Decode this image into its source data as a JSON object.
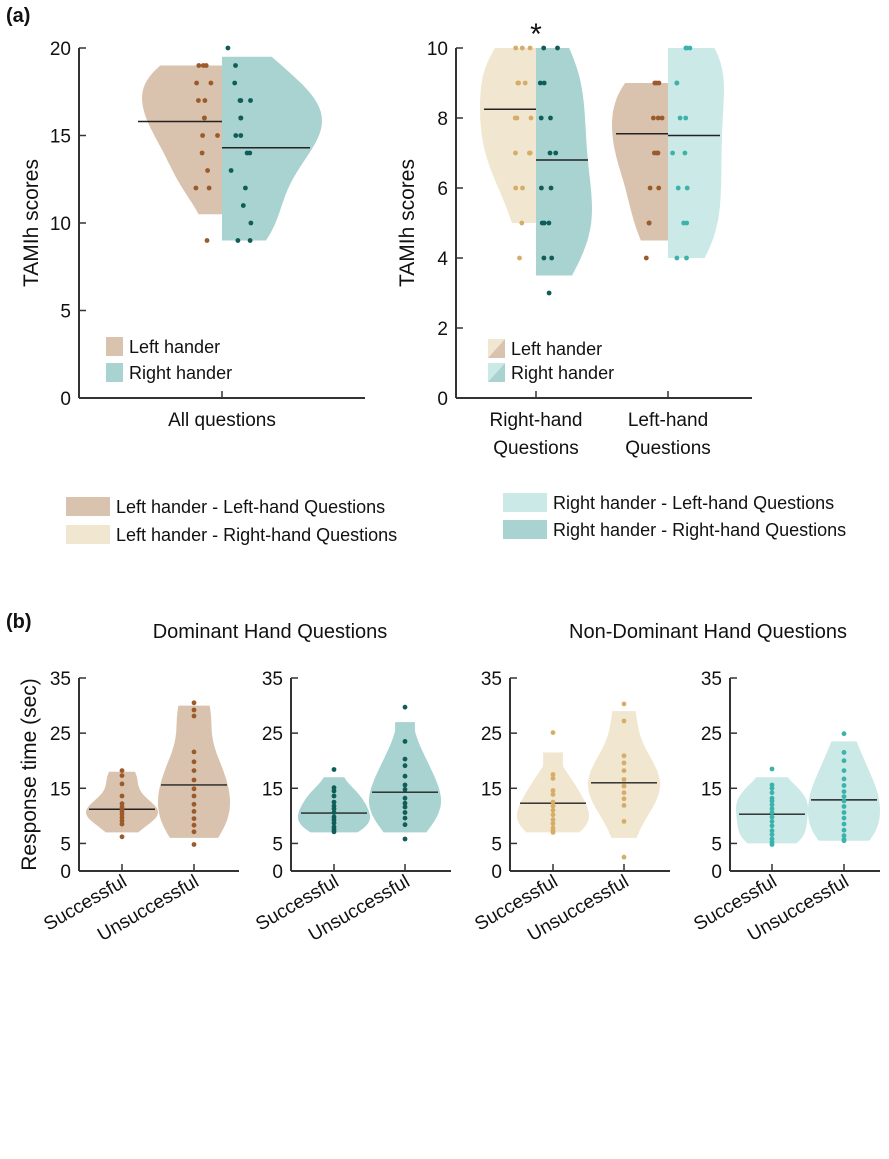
{
  "panel_a_label": "(a)",
  "panel_b_label": "(b)",
  "colors": {
    "left_left_q": "#d9c3ae",
    "left_right_q": "#f1e6cf",
    "right_left_q": "#cbe9e6",
    "right_right_q": "#a8d3d0",
    "left_all": "#d9c3ae",
    "right_all": "#a8d3d0",
    "dot_left": "#9a5a2a",
    "dot_right": "#0f5c58",
    "dot_left_light": "#d6ad66",
    "dot_right_light": "#3bb3ac",
    "median": "#222222"
  },
  "bottom_legend": {
    "left_col": [
      "Left hander - Left-hand Questions",
      "Left hander - Right-hand Questions"
    ],
    "right_col": [
      "Right hander - Left-hand Questions",
      "Right hander - Right-hand Questions"
    ]
  },
  "chart_data": [
    {
      "id": "a1",
      "type": "violin",
      "ylabel": "TAMIh scores",
      "ylim": [
        0,
        20
      ],
      "yticks": [
        0,
        5,
        10,
        15,
        20
      ],
      "categories": [
        "All questions"
      ],
      "legend": [
        "Left hander",
        "Right hander"
      ],
      "series": [
        {
          "name": "Left hander",
          "median": 15.8,
          "range": [
            10.5,
            19
          ],
          "points": [
            19,
            19,
            19,
            18,
            18,
            17,
            17,
            16,
            16,
            15,
            15,
            14,
            13,
            12,
            12,
            9
          ]
        },
        {
          "name": "Right hander",
          "median": 14.3,
          "range": [
            9,
            19.5
          ],
          "points": [
            20,
            19,
            18,
            17,
            17,
            17,
            16,
            16,
            15,
            15,
            14,
            14,
            13,
            12,
            11,
            10,
            9,
            9
          ]
        }
      ]
    },
    {
      "id": "a2",
      "type": "violin",
      "ylabel": "TAMIh scores",
      "ylim": [
        0,
        10
      ],
      "yticks": [
        0,
        2,
        4,
        6,
        8,
        10
      ],
      "categories": [
        "Right-hand Questions",
        "Left-hand Questions"
      ],
      "legend": [
        "Left hander",
        "Right hander"
      ],
      "annotation": "*",
      "series": [
        {
          "name": "Left hander - Right-hand Questions",
          "category": 0,
          "side": "left",
          "median": 8.25,
          "range": [
            5,
            10
          ],
          "points": [
            10,
            10,
            10,
            9,
            9,
            9,
            8,
            8,
            8,
            7,
            7,
            7,
            6,
            6,
            5,
            4
          ]
        },
        {
          "name": "Right hander - Right-hand Questions",
          "category": 0,
          "side": "right",
          "median": 6.8,
          "range": [
            3.5,
            10
          ],
          "points": [
            10,
            10,
            9,
            9,
            8,
            8,
            7,
            7,
            6,
            6,
            5,
            5,
            5,
            4,
            4,
            3
          ]
        },
        {
          "name": "Left hander - Left-hand Questions",
          "category": 1,
          "side": "left",
          "median": 7.55,
          "range": [
            4.5,
            9
          ],
          "points": [
            9,
            9,
            9,
            8,
            8,
            8,
            7,
            7,
            7,
            6,
            6,
            5,
            5,
            4
          ]
        },
        {
          "name": "Right hander - Left-hand Questions",
          "category": 1,
          "side": "right",
          "median": 7.5,
          "range": [
            4,
            10
          ],
          "points": [
            10,
            10,
            10,
            9,
            9,
            8,
            8,
            7,
            7,
            6,
            6,
            5,
            5,
            4,
            4
          ]
        }
      ]
    },
    {
      "id": "b1",
      "type": "violin",
      "group_title": "Dominant Hand Questions",
      "ylabel": "Response time (sec)",
      "ylim": [
        0,
        35
      ],
      "yticks": [
        0,
        5,
        15,
        25,
        35
      ],
      "categories": [
        "Successful",
        "Unsuccessful"
      ],
      "series": [
        {
          "name": "Successful",
          "median": 11.2,
          "range": [
            7,
            18
          ],
          "points": [
            18.2,
            17.3,
            15.8,
            13.6,
            12.2,
            11.6,
            11.2,
            10.8,
            10.3,
            9.7,
            9.1,
            8.5,
            6.2
          ]
        },
        {
          "name": "Unsuccessful",
          "median": 15.6,
          "range": [
            6,
            30
          ],
          "points": [
            30.5,
            29.2,
            28.1,
            21.6,
            19.8,
            18.2,
            16.5,
            14.9,
            13.6,
            12.1,
            10.8,
            9.5,
            8.3,
            7.1,
            4.8
          ]
        }
      ]
    },
    {
      "id": "b2",
      "type": "violin",
      "ylim": [
        0,
        35
      ],
      "yticks": [
        0,
        5,
        15,
        25,
        35
      ],
      "categories": [
        "Successful",
        "Unsuccessful"
      ],
      "series": [
        {
          "name": "Successful",
          "median": 10.5,
          "range": [
            7,
            17
          ],
          "points": [
            18.4,
            15.1,
            14.5,
            13.6,
            12.5,
            11.8,
            11.3,
            10.6,
            9.8,
            9.3,
            8.7,
            8.0,
            7.5,
            7.1
          ]
        },
        {
          "name": "Unsuccessful",
          "median": 14.3,
          "range": [
            7,
            27
          ],
          "points": [
            29.7,
            23.5,
            20.3,
            19.1,
            17.2,
            15.6,
            14.8,
            13.2,
            12.3,
            11.6,
            10.6,
            9.6,
            8.4,
            5.8
          ]
        }
      ]
    },
    {
      "id": "b3",
      "type": "violin",
      "group_title": "Non-Dominant Hand Questions",
      "ylim": [
        0,
        35
      ],
      "yticks": [
        0,
        5,
        15,
        25,
        35
      ],
      "categories": [
        "Successful",
        "Unsuccessful"
      ],
      "series": [
        {
          "name": "Successful",
          "median": 12.3,
          "range": [
            7,
            21.5
          ],
          "points": [
            25.1,
            17.5,
            16.8,
            14.6,
            13.9,
            12.5,
            11.8,
            11.0,
            10.2,
            9.3,
            8.6,
            7.8,
            7.3,
            7.0
          ]
        },
        {
          "name": "Unsuccessful",
          "median": 16.0,
          "range": [
            6,
            29
          ],
          "points": [
            30.3,
            27.2,
            20.9,
            19.6,
            18.2,
            16.6,
            15.4,
            14.2,
            13.1,
            11.9,
            9.0,
            2.5
          ]
        }
      ]
    },
    {
      "id": "b4",
      "type": "violin",
      "ylim": [
        0,
        35
      ],
      "yticks": [
        0,
        5,
        15,
        25,
        35
      ],
      "categories": [
        "Successful",
        "Unsuccessful"
      ],
      "series": [
        {
          "name": "Successful",
          "median": 10.3,
          "range": [
            5,
            17
          ],
          "points": [
            18.5,
            15.6,
            15.0,
            14.2,
            13.2,
            12.7,
            12.0,
            11.3,
            10.6,
            9.8,
            9.0,
            8.2,
            7.3,
            6.6,
            5.8,
            5.2,
            4.8
          ]
        },
        {
          "name": "Unsuccessful",
          "median": 12.9,
          "range": [
            5.5,
            23.5
          ],
          "points": [
            24.9,
            21.5,
            20.0,
            18.2,
            16.7,
            15.5,
            14.4,
            13.5,
            12.7,
            11.7,
            10.6,
            9.6,
            8.5,
            7.4,
            6.4,
            5.7,
            5.5
          ]
        }
      ]
    }
  ]
}
